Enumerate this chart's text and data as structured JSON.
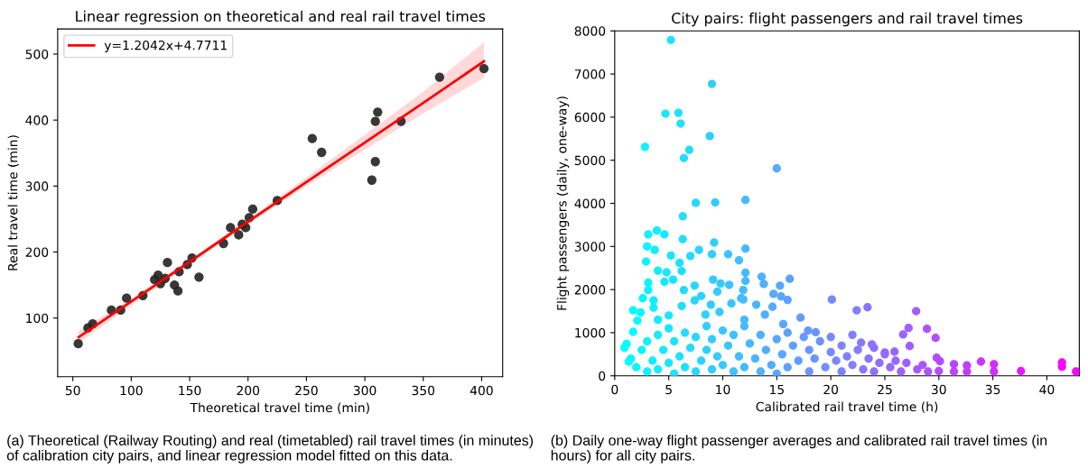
{
  "chart_data": [
    {
      "type": "scatter",
      "title": "Linear regression on theoretical and real rail travel times",
      "xlabel": "Theoretical travel time (min)",
      "ylabel": "Real travel time (min)",
      "xlim": [
        37,
        418
      ],
      "xticks": [
        50,
        100,
        150,
        200,
        250,
        300,
        350,
        400
      ],
      "ylim": [
        11,
        538
      ],
      "yticks": [
        100,
        200,
        300,
        400,
        500
      ],
      "legend": "top left",
      "series": [
        {
          "color": "#222222",
          "marker": "circle",
          "x": [
            54.6,
            62.9,
            67,
            83,
            91,
            96,
            110,
            120,
            123,
            125,
            129,
            131,
            137,
            140,
            141,
            148,
            152,
            158,
            179,
            185,
            192,
            195,
            198,
            201,
            204,
            225,
            255,
            263,
            306,
            309,
            309,
            311,
            331,
            364,
            402
          ],
          "values": [
            61,
            85,
            91,
            112,
            112,
            130,
            134,
            158,
            165,
            152,
            160,
            184,
            150,
            141,
            170,
            181,
            191,
            162,
            213,
            237,
            226,
            242,
            237,
            252,
            265,
            278,
            372,
            351,
            309,
            337,
            398,
            412,
            398,
            465,
            478
          ]
        },
        {
          "type": "line",
          "name": "y=1.2042x+4.7711",
          "color": "#ff0000",
          "x": [
            55,
            100,
            150,
            200,
            250,
            300,
            350,
            402
          ],
          "values": [
            71,
            125,
            185,
            246,
            306,
            366,
            426,
            489
          ],
          "lower": [
            62,
            119,
            181,
            242,
            300,
            355,
            410,
            464
          ],
          "upper": [
            80,
            130,
            189,
            250,
            313,
            378,
            443,
            518
          ]
        }
      ],
      "annotations": [
        "(a) Theoretical (Railway Routing) and real (timetabled) rail travel times (in minutes) of calibration city pairs, and linear regression model fitted on this data."
      ]
    },
    {
      "type": "scatter",
      "title": "City pairs: flight passengers and rail travel times",
      "xlabel": "Calibrated rail travel time (h)",
      "ylabel": "Flight passengers (daily, one-way)",
      "xlim": [
        0,
        43
      ],
      "xticks": [
        0,
        5,
        10,
        15,
        20,
        25,
        30,
        35,
        40
      ],
      "ylim": [
        0,
        8000
      ],
      "yticks": [
        0,
        1000,
        2000,
        3000,
        4000,
        5000,
        6000,
        7000,
        8000
      ],
      "series": [
        {
          "x": [
            5.2,
            9.0,
            4.7,
            5.9,
            6.1,
            8.8,
            2.8,
            6.9,
            6.4,
            15.0,
            7.5,
            9.3,
            12.1,
            6.3,
            3.1,
            3.9,
            4.6,
            20.1,
            22.4,
            23.4,
            27.9,
            27.2,
            26.7,
            28.9,
            29.7,
            27.3,
            22.0,
            31.4,
            31.4,
            32.6,
            32.6,
            33.9,
            35.1,
            35.1,
            37.6,
            41.4,
            41.4,
            42.7,
            29.8,
            30.1,
            30.0,
            23.8,
            25.9,
            25.0,
            22.8,
            20.0,
            12.1,
            10.5,
            11.5,
            9.2,
            9.0,
            7.8,
            7.0,
            5.2,
            6.3,
            3.0,
            3.7,
            2.9,
            4.0,
            4.8,
            4.6,
            5.4,
            6.0,
            6.2,
            6.4,
            7.4,
            8.0,
            9.1,
            9.5,
            9.8,
            10.6,
            12.1,
            12.1,
            11.9,
            11.9,
            13.6,
            13.8,
            14.7,
            15.3,
            16.2,
            15.4,
            16.0,
            3.1,
            3.1,
            2.6,
            3.6,
            3.6,
            1.7,
            2.4,
            2.1,
            1.7,
            1.1,
            0.9,
            1.3,
            17.9,
            18.6,
            17.2,
            14.6,
            13.1,
            11.7,
            10.8,
            8.9,
            7.4,
            6.2,
            5.0,
            4.0,
            8.4,
            9.7,
            12.0,
            13.9,
            15.6,
            1.5,
            2.0,
            2.5,
            3.0,
            3.0,
            3.5,
            4.0,
            4.0,
            4.5,
            5.0,
            5.0,
            5.5,
            5.5,
            6.0,
            6.5,
            6.5,
            7.0,
            7.5,
            7.5,
            8.0,
            8.5,
            8.5,
            9.0,
            9.0,
            9.5,
            10.0,
            10.0,
            10.5,
            11.0,
            11.0,
            11.5,
            12.0,
            12.0,
            12.5,
            13.0,
            13.5,
            13.5,
            14.0,
            14.5,
            15.0,
            15.0,
            15.5,
            16.0,
            16.0,
            16.5,
            17.0,
            17.5,
            18.0,
            18.0,
            18.5,
            19.0,
            19.5,
            20.0,
            20.5,
            21.0,
            21.0,
            21.5,
            22.0,
            22.5,
            23.0,
            23.5,
            24.0,
            24.0,
            24.5,
            25.0,
            25.5,
            26.0,
            26.5,
            27.0,
            28.0,
            28.5,
            29.0
          ],
          "values": [
            7790,
            6770,
            6080,
            6100,
            5850,
            5560,
            5310,
            5240,
            5050,
            4810,
            4010,
            4020,
            4080,
            3700,
            3280,
            3370,
            3280,
            1770,
            1520,
            1590,
            1500,
            1110,
            960,
            1090,
            880,
            690,
            950,
            270,
            100,
            240,
            100,
            330,
            270,
            100,
            110,
            310,
            210,
            100,
            420,
            340,
            110,
            730,
            560,
            540,
            770,
            900,
            2950,
            2820,
            2680,
            3090,
            2820,
            2920,
            2780,
            2790,
            3170,
            3000,
            2920,
            2650,
            2440,
            2400,
            2180,
            2230,
            2620,
            2430,
            1990,
            2090,
            1850,
            2230,
            1950,
            2140,
            2110,
            2390,
            2200,
            1990,
            1770,
            2300,
            2130,
            1900,
            2090,
            2250,
            1840,
            1760,
            2160,
            1990,
            1800,
            1750,
            1580,
            1520,
            1470,
            1280,
            1020,
            740,
            650,
            330,
            1050,
            1010,
            1350,
            1600,
            1650,
            1800,
            1680,
            1650,
            1750,
            1620,
            1400,
            1300,
            1420,
            1480,
            1300,
            1420,
            1200,
            400,
            200,
            600,
            100,
            800,
            350,
            950,
            150,
            600,
            300,
            1100,
            50,
            800,
            450,
            1000,
            200,
            650,
            100,
            900,
            350,
            1150,
            600,
            150,
            850,
            450,
            1050,
            250,
            700,
            100,
            950,
            450,
            1150,
            200,
            750,
            400,
            950,
            100,
            600,
            250,
            850,
            50,
            500,
            1000,
            200,
            700,
            350,
            900,
            100,
            600,
            400,
            800,
            200,
            550,
            350,
            700,
            100,
            450,
            250,
            600,
            150,
            400,
            650,
            100,
            300,
            500,
            200,
            350,
            100,
            300,
            150,
            250,
            100
          ],
          "marker": "circle",
          "colors": [
            "#1ae5ff",
            "#31ceff",
            "#17e8ff",
            "#1ee1ff",
            "#20dfff",
            "#30cfff",
            "#0cf3ff",
            "#25daff",
            "#22ddff",
            "#56a9ff",
            "#28d7ff",
            "#33ccff",
            "#44bbff",
            "#21deff",
            "#0df2ff",
            "#12edff",
            "#17e8ff",
            "#758aff",
            "#837cff",
            "#8976ff",
            "#a55aff",
            "#a05fff",
            "#9d62ff",
            "#ab54ff",
            "#b04fff",
            "#a15eff",
            "#817eff",
            "#ba45ff",
            "#ba45ff",
            "#c13eff",
            "#c13eff",
            "#c936ff",
            "#d12eff",
            "#d12eff",
            "#e01fff",
            "#f708ff",
            "#f708ff",
            "#ff00ff",
            "#b04fff",
            "#b24dff",
            "#b24dff",
            "#8c73ff",
            "#9867ff",
            "#936cff",
            "#8679ff",
            "#758aff",
            "#44bbff",
            "#3bc4ff",
            "#41beff",
            "#33ccff",
            "#31ceff",
            "#2ad5ff",
            "#25daff",
            "#1ae5ff",
            "#21deff",
            "#0df2ff",
            "#11eeff",
            "#0cf3ff",
            "#13ecff",
            "#18e7ff",
            "#17e8ff",
            "#1be4ff",
            "#1fe0ff",
            "#20dfff",
            "#22ddff",
            "#28d7ff",
            "#2bd4ff",
            "#32cdff",
            "#34cbff",
            "#36c9ff",
            "#3bc4ff",
            "#44bbff",
            "#44bbff",
            "#43bcff",
            "#43bcff",
            "#4db2ff",
            "#4fb0ff",
            "#54abff",
            "#58a7ff",
            "#5da2ff",
            "#58a7ff",
            "#5ca3ff",
            "#0df2ff",
            "#0df2ff",
            "#0af5ff",
            "#10efff",
            "#10efff",
            "#05faff",
            "#09f6ff",
            "#07f8ff",
            "#05faff",
            "#01feff",
            "#00ffff",
            "#02fdff",
            "#6897ff",
            "#6c93ff",
            "#639cff",
            "#54abff",
            "#4ab5ff",
            "#42bdff",
            "#3cc3ff",
            "#31ceff",
            "#28d7ff",
            "#20dfff",
            "#19e6ff",
            "#13ecff",
            "#2ed1ff",
            "#36c9ff",
            "#44bbff",
            "#4fb0ff",
            "#5aa5ff",
            "#04fbff",
            "#07f8ff",
            "#0af5ff",
            "#0df2ff",
            "#0df2ff",
            "#10efff",
            "#13ecff",
            "#13ecff",
            "#16e9ff",
            "#19e6ff",
            "#19e6ff",
            "#1ce3ff",
            "#1ce3ff",
            "#1fe0ff",
            "#22ddff",
            "#22ddff",
            "#25daff",
            "#28d7ff",
            "#28d7ff",
            "#2bd4ff",
            "#2ed1ff",
            "#2ed1ff",
            "#31ceff",
            "#31ceff",
            "#34cbff",
            "#38c7ff",
            "#38c7ff",
            "#3bc4ff",
            "#3ec1ff",
            "#3ec1ff",
            "#41beff",
            "#44bbff",
            "#44bbff",
            "#47b8ff",
            "#4ab5ff",
            "#4db2ff",
            "#4db2ff",
            "#50afff",
            "#53acff",
            "#56a9ff",
            "#56a9ff",
            "#59a6ff",
            "#5ca3ff",
            "#5ca3ff",
            "#5fa0ff",
            "#629dff",
            "#659aff",
            "#6897ff",
            "#6897ff",
            "#6b94ff",
            "#6e91ff",
            "#718eff",
            "#758aff",
            "#7887ff",
            "#7b84ff",
            "#7b84ff",
            "#7e81ff",
            "#817eff",
            "#847bff",
            "#8778ff",
            "#8a75ff",
            "#8d72ff",
            "#8d72ff",
            "#906fff",
            "#936cff",
            "#9669ff",
            "#9966ff",
            "#9c63ff",
            "#9f60ff",
            "#a55aff",
            "#a857ff",
            "#ab54ff"
          ]
        }
      ],
      "annotations": [
        "(b) Daily one-way flight passenger averages and calibrated rail travel times (in hours) for all city pairs."
      ]
    }
  ]
}
